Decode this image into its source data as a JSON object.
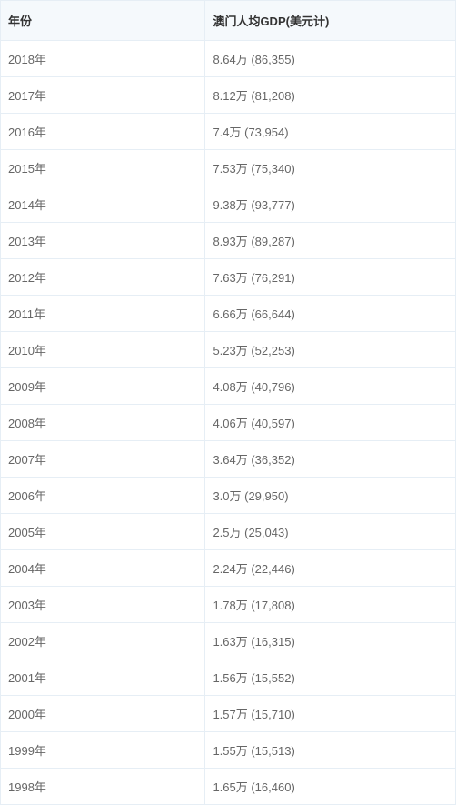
{
  "table": {
    "columns": [
      "年份",
      "澳门人均GDP(美元计)"
    ],
    "rows": [
      [
        "2018年",
        "8.64万 (86,355)"
      ],
      [
        "2017年",
        "8.12万 (81,208)"
      ],
      [
        "2016年",
        "7.4万 (73,954)"
      ],
      [
        "2015年",
        "7.53万 (75,340)"
      ],
      [
        "2014年",
        "9.38万 (93,777)"
      ],
      [
        "2013年",
        "8.93万 (89,287)"
      ],
      [
        "2012年",
        "7.63万 (76,291)"
      ],
      [
        "2011年",
        "6.66万 (66,644)"
      ],
      [
        "2010年",
        "5.23万 (52,253)"
      ],
      [
        "2009年",
        "4.08万 (40,796)"
      ],
      [
        "2008年",
        "4.06万 (40,597)"
      ],
      [
        "2007年",
        "3.64万 (36,352)"
      ],
      [
        "2006年",
        "3.0万 (29,950)"
      ],
      [
        "2005年",
        "2.5万 (25,043)"
      ],
      [
        "2004年",
        "2.24万 (22,446)"
      ],
      [
        "2003年",
        "1.78万 (17,808)"
      ],
      [
        "2002年",
        "1.63万 (16,315)"
      ],
      [
        "2001年",
        "1.56万 (15,552)"
      ],
      [
        "2000年",
        "1.57万 (15,710)"
      ],
      [
        "1999年",
        "1.55万 (15,513)"
      ],
      [
        "1998年",
        "1.65万 (16,460)"
      ]
    ],
    "header_bg": "#f5f9fc",
    "border_color": "#e6eef5",
    "header_text_color": "#333333",
    "cell_text_color": "#666666",
    "font_size": 13
  }
}
